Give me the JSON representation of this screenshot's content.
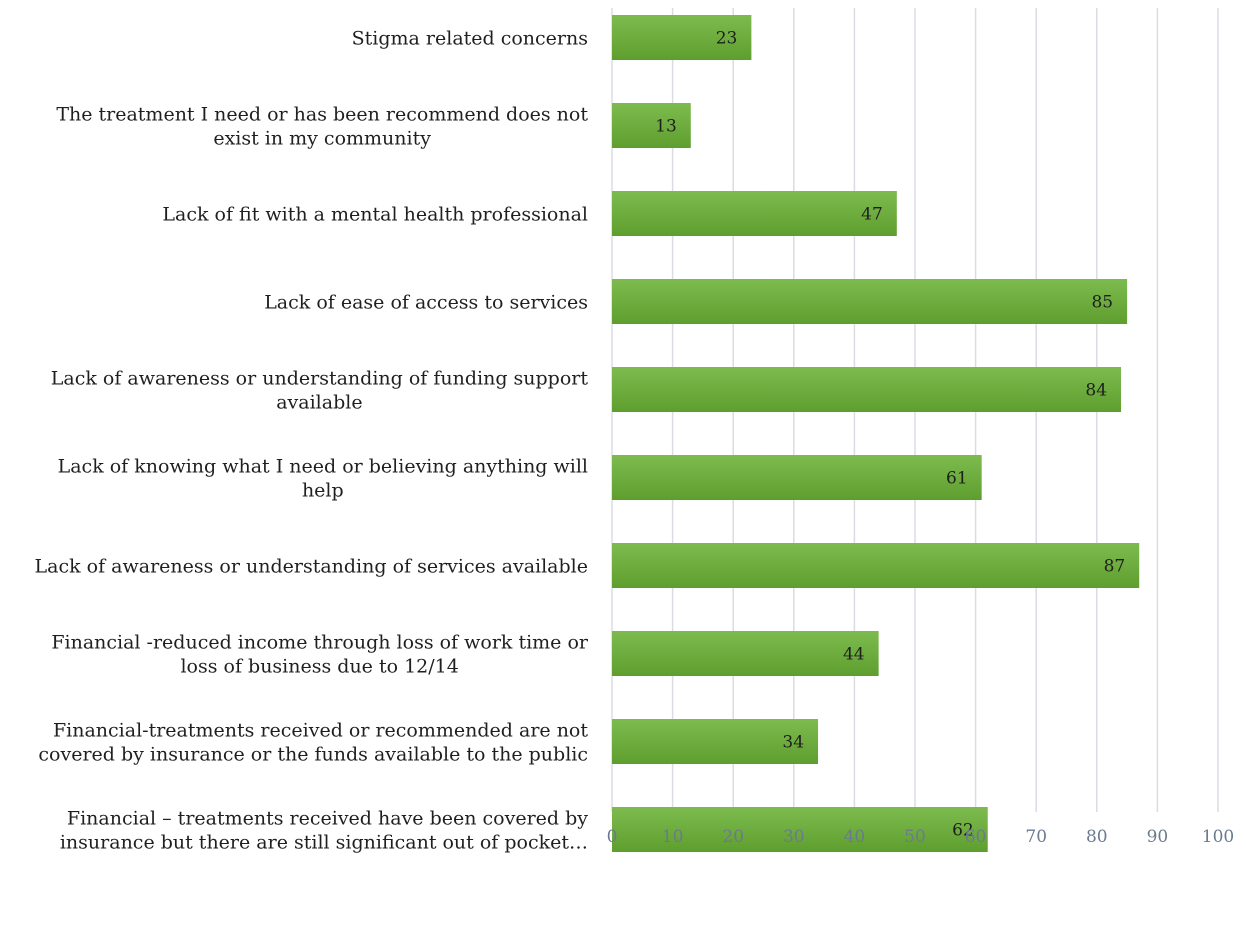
{
  "chart_data": {
    "type": "bar",
    "orientation": "horizontal",
    "categories": [
      "Stigma related concerns",
      "The treatment I need or has been recommend does not exist in my community",
      "Lack of fit with a mental health professional",
      "Lack of ease of access to services",
      "Lack of awareness or understanding of funding support available",
      "Lack of knowing what I need or believing anything will help",
      "Lack of awareness or understanding of services available",
      "Financial -reduced income through loss of work time or loss of business due to 12/14",
      "Financial-treatments received or recommended are not covered by insurance or the funds available to the public",
      "Financial – treatments received have been covered by insurance but there are still significant out of pocket…"
    ],
    "category_lines": [
      [
        "Stigma related concerns"
      ],
      [
        "The treatment I need or has been recommend does not",
        "exist in my community"
      ],
      [
        "Lack of fit with a mental health professional"
      ],
      [
        "Lack of ease of access to services"
      ],
      [
        "Lack of awareness or understanding of funding support",
        "available"
      ],
      [
        "Lack of knowing what I need or believing anything will",
        "help"
      ],
      [
        "Lack of awareness or understanding of services available"
      ],
      [
        "Financial -reduced income through loss of work time or",
        "loss of business due to 12/14"
      ],
      [
        "Financial-treatments received or recommended are not",
        "covered by insurance or the funds available to the public"
      ],
      [
        "Financial – treatments received have been covered by",
        "insurance but there are still significant out of pocket…"
      ]
    ],
    "values": [
      23,
      13,
      47,
      85,
      84,
      61,
      87,
      44,
      34,
      62
    ],
    "data_labels": [
      "23",
      "13",
      "47",
      "85",
      "84",
      "61",
      "87",
      "44",
      "34",
      "62"
    ],
    "xlim": [
      0,
      100
    ],
    "x_ticks": [
      0,
      10,
      20,
      30,
      40,
      50,
      60,
      70,
      80,
      90,
      100
    ],
    "x_tick_labels": [
      "0",
      "10",
      "20",
      "30",
      "40",
      "50",
      "60",
      "70",
      "80",
      "90",
      "100"
    ],
    "title": "",
    "xlabel": "",
    "ylabel": "",
    "grid": "vertical",
    "legend": "none",
    "colors": {
      "bar_top": "#7dbb4e",
      "bar_bottom": "#5e9e2e",
      "grid": "#d9dde3",
      "tick_text": "#6b7a8f",
      "label_text": "#1f1f1f"
    }
  }
}
